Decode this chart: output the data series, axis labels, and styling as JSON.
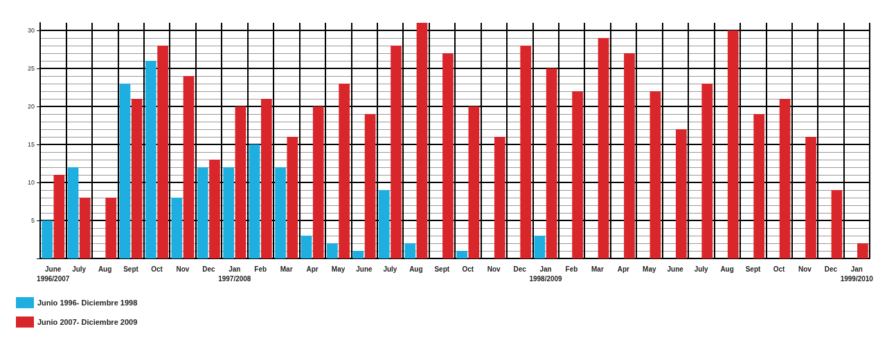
{
  "chart_data": {
    "type": "bar",
    "categories": [
      "June\n1996/2007",
      "July",
      "Aug",
      "Sept",
      "Oct",
      "Nov",
      "Dec",
      "Jan\n1997/2008",
      "Feb",
      "Mar",
      "Apr",
      "May",
      "June",
      "July",
      "Aug",
      "Sept",
      "Oct",
      "Nov",
      "Dec",
      "Jan\n1998/2009",
      "Feb",
      "Mar",
      "Apr",
      "May",
      "June",
      "July",
      "Aug",
      "Sept",
      "Oct",
      "Nov",
      "Dec",
      "Jan\n1999/2010"
    ],
    "series": [
      {
        "name": "Junio 1996- Diciembre 1998",
        "color": "#1eaee0",
        "values": [
          5,
          12,
          0,
          23,
          26,
          8,
          12,
          12,
          15,
          12,
          3,
          2,
          1,
          9,
          2,
          0,
          1,
          0,
          0,
          3,
          0,
          0,
          0,
          0,
          0,
          0,
          0,
          0,
          0,
          0,
          0,
          null
        ]
      },
      {
        "name": "Junio 2007- Diciembre 2009",
        "color": "#d9262b",
        "values": [
          11,
          8,
          8,
          21,
          28,
          24,
          13,
          20,
          21,
          16,
          20,
          23,
          19,
          28,
          31,
          27,
          20,
          16,
          28,
          25,
          22,
          29,
          27,
          22,
          17,
          23,
          30,
          19,
          21,
          16,
          9,
          2
        ]
      }
    ],
    "ylim": [
      0,
      31
    ],
    "yticks": [
      {
        "value": 0,
        "label": null
      },
      5,
      10,
      15,
      20,
      25,
      30
    ],
    "grid": true,
    "legend": "bottom left"
  }
}
